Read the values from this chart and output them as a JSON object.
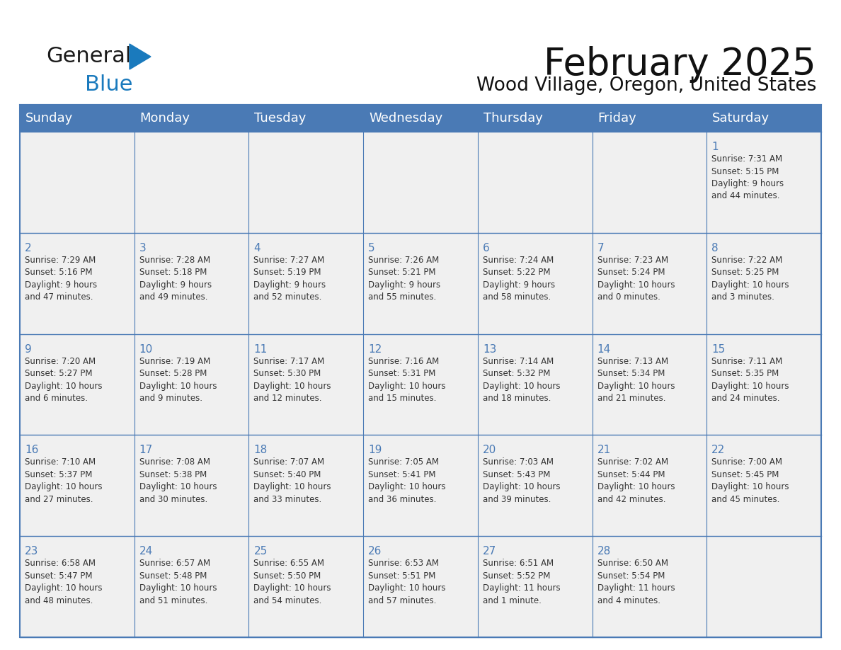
{
  "title": "February 2025",
  "subtitle": "Wood Village, Oregon, United States",
  "header_bg_color": "#4a7ab5",
  "header_text_color": "#ffffff",
  "cell_bg_color": "#f0f0f0",
  "day_headers": [
    "Sunday",
    "Monday",
    "Tuesday",
    "Wednesday",
    "Thursday",
    "Friday",
    "Saturday"
  ],
  "title_fontsize": 38,
  "subtitle_fontsize": 19,
  "header_fontsize": 13,
  "cell_day_fontsize": 11,
  "cell_info_fontsize": 8.5,
  "grid_color": "#4a7ab5",
  "text_color": "#333333",
  "day_num_color": "#4a7ab5",
  "weeks": [
    [
      {
        "day": null,
        "info": ""
      },
      {
        "day": null,
        "info": ""
      },
      {
        "day": null,
        "info": ""
      },
      {
        "day": null,
        "info": ""
      },
      {
        "day": null,
        "info": ""
      },
      {
        "day": null,
        "info": ""
      },
      {
        "day": "1",
        "info": "Sunrise: 7:31 AM\nSunset: 5:15 PM\nDaylight: 9 hours\nand 44 minutes."
      }
    ],
    [
      {
        "day": "2",
        "info": "Sunrise: 7:29 AM\nSunset: 5:16 PM\nDaylight: 9 hours\nand 47 minutes."
      },
      {
        "day": "3",
        "info": "Sunrise: 7:28 AM\nSunset: 5:18 PM\nDaylight: 9 hours\nand 49 minutes."
      },
      {
        "day": "4",
        "info": "Sunrise: 7:27 AM\nSunset: 5:19 PM\nDaylight: 9 hours\nand 52 minutes."
      },
      {
        "day": "5",
        "info": "Sunrise: 7:26 AM\nSunset: 5:21 PM\nDaylight: 9 hours\nand 55 minutes."
      },
      {
        "day": "6",
        "info": "Sunrise: 7:24 AM\nSunset: 5:22 PM\nDaylight: 9 hours\nand 58 minutes."
      },
      {
        "day": "7",
        "info": "Sunrise: 7:23 AM\nSunset: 5:24 PM\nDaylight: 10 hours\nand 0 minutes."
      },
      {
        "day": "8",
        "info": "Sunrise: 7:22 AM\nSunset: 5:25 PM\nDaylight: 10 hours\nand 3 minutes."
      }
    ],
    [
      {
        "day": "9",
        "info": "Sunrise: 7:20 AM\nSunset: 5:27 PM\nDaylight: 10 hours\nand 6 minutes."
      },
      {
        "day": "10",
        "info": "Sunrise: 7:19 AM\nSunset: 5:28 PM\nDaylight: 10 hours\nand 9 minutes."
      },
      {
        "day": "11",
        "info": "Sunrise: 7:17 AM\nSunset: 5:30 PM\nDaylight: 10 hours\nand 12 minutes."
      },
      {
        "day": "12",
        "info": "Sunrise: 7:16 AM\nSunset: 5:31 PM\nDaylight: 10 hours\nand 15 minutes."
      },
      {
        "day": "13",
        "info": "Sunrise: 7:14 AM\nSunset: 5:32 PM\nDaylight: 10 hours\nand 18 minutes."
      },
      {
        "day": "14",
        "info": "Sunrise: 7:13 AM\nSunset: 5:34 PM\nDaylight: 10 hours\nand 21 minutes."
      },
      {
        "day": "15",
        "info": "Sunrise: 7:11 AM\nSunset: 5:35 PM\nDaylight: 10 hours\nand 24 minutes."
      }
    ],
    [
      {
        "day": "16",
        "info": "Sunrise: 7:10 AM\nSunset: 5:37 PM\nDaylight: 10 hours\nand 27 minutes."
      },
      {
        "day": "17",
        "info": "Sunrise: 7:08 AM\nSunset: 5:38 PM\nDaylight: 10 hours\nand 30 minutes."
      },
      {
        "day": "18",
        "info": "Sunrise: 7:07 AM\nSunset: 5:40 PM\nDaylight: 10 hours\nand 33 minutes."
      },
      {
        "day": "19",
        "info": "Sunrise: 7:05 AM\nSunset: 5:41 PM\nDaylight: 10 hours\nand 36 minutes."
      },
      {
        "day": "20",
        "info": "Sunrise: 7:03 AM\nSunset: 5:43 PM\nDaylight: 10 hours\nand 39 minutes."
      },
      {
        "day": "21",
        "info": "Sunrise: 7:02 AM\nSunset: 5:44 PM\nDaylight: 10 hours\nand 42 minutes."
      },
      {
        "day": "22",
        "info": "Sunrise: 7:00 AM\nSunset: 5:45 PM\nDaylight: 10 hours\nand 45 minutes."
      }
    ],
    [
      {
        "day": "23",
        "info": "Sunrise: 6:58 AM\nSunset: 5:47 PM\nDaylight: 10 hours\nand 48 minutes."
      },
      {
        "day": "24",
        "info": "Sunrise: 6:57 AM\nSunset: 5:48 PM\nDaylight: 10 hours\nand 51 minutes."
      },
      {
        "day": "25",
        "info": "Sunrise: 6:55 AM\nSunset: 5:50 PM\nDaylight: 10 hours\nand 54 minutes."
      },
      {
        "day": "26",
        "info": "Sunrise: 6:53 AM\nSunset: 5:51 PM\nDaylight: 10 hours\nand 57 minutes."
      },
      {
        "day": "27",
        "info": "Sunrise: 6:51 AM\nSunset: 5:52 PM\nDaylight: 11 hours\nand 1 minute."
      },
      {
        "day": "28",
        "info": "Sunrise: 6:50 AM\nSunset: 5:54 PM\nDaylight: 11 hours\nand 4 minutes."
      },
      {
        "day": null,
        "info": ""
      }
    ]
  ],
  "logo_color_general": "#1a1a1a",
  "logo_color_blue": "#1a7abd",
  "logo_triangle_color": "#1a7abd"
}
